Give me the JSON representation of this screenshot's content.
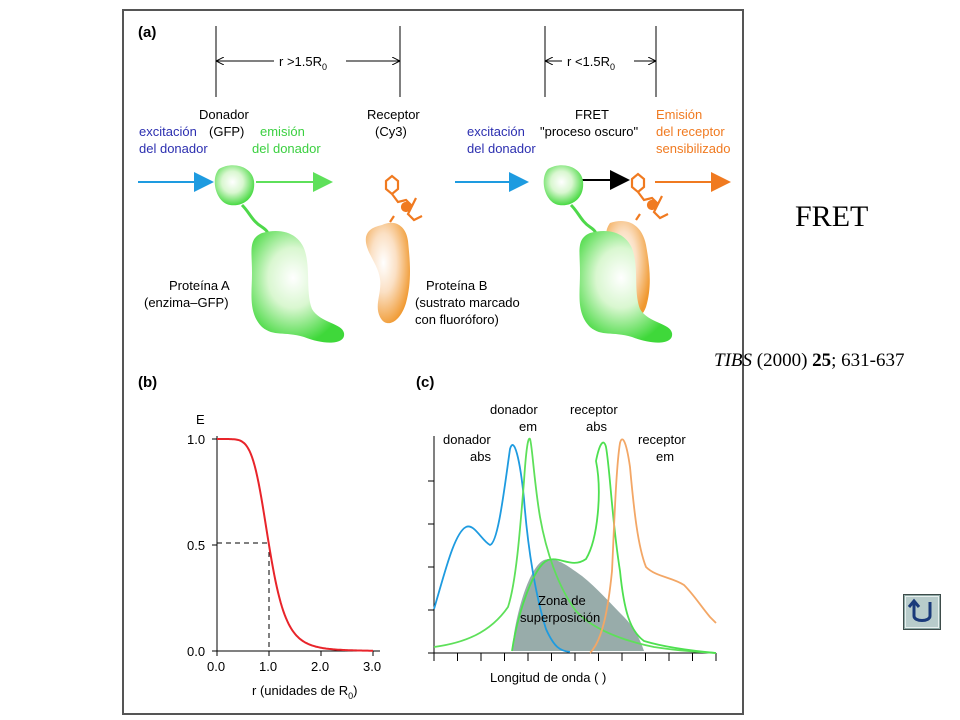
{
  "side_title": "FRET",
  "citation": {
    "journal": "TIBS",
    "year": " (2000) ",
    "volume": "25",
    "pages": "; 631-637"
  },
  "panel_a": {
    "label": "(a)",
    "dist_far": "r >1.5R",
    "dist_near": "r <1.5R",
    "dist_sub": "0",
    "donor_title": "Donador",
    "donor_gfp": "(GFP)",
    "excitation_1": "excitación",
    "excitation_2": "del donador",
    "emission_1": "emisión",
    "emission_2": "del donador",
    "receptor_title": "Receptor",
    "receptor_cy3": "(Cy3)",
    "fret_title": "FRET",
    "dark_process": "\"proceso oscuro\"",
    "sens_1": "Emisión",
    "sens_2": "del receptor",
    "sens_3": "sensibilizado",
    "protein_a_1": "Proteína A",
    "protein_a_2": "(enzima–GFP)",
    "protein_b_1": "Proteína B",
    "protein_b_2": "(sustrato marcado",
    "protein_b_3": "con fluoróforo)"
  },
  "panel_b": {
    "label": "(b)",
    "ylabel": "E",
    "yticks": [
      "1.0",
      "0.5",
      "0.0"
    ],
    "xticks": [
      "0.0",
      "1.0",
      "2.0",
      "3.0"
    ],
    "xlabel": "r (unidades de R",
    "xlabel_sub": "0",
    "xlabel_end": ")"
  },
  "panel_c": {
    "label": "(c)",
    "donor_abs_1": "donador",
    "donor_abs_2": "abs",
    "donor_em_1": "donador",
    "donor_em_2": "em",
    "rec_abs_1": "receptor",
    "rec_abs_2": "abs",
    "rec_em_1": "receptor",
    "rec_em_2": "em",
    "overlap_1": "Zona de",
    "overlap_2": "superposición",
    "xlabel": "Longitud de onda (   )"
  },
  "colors": {
    "donor_abs": "#1e9be0",
    "donor_em": "#5ee05a",
    "acceptor_abs": "#4ee050",
    "acceptor_em": "#f3a766",
    "fret_curve": "#e8242a",
    "donor_text": "#2c2fb0",
    "emission_text": "#3bd040",
    "sensitized_text": "#f07a20",
    "overlap_fill": "#98acaa"
  },
  "icons": {
    "back_button": "u-turn-back-icon"
  }
}
